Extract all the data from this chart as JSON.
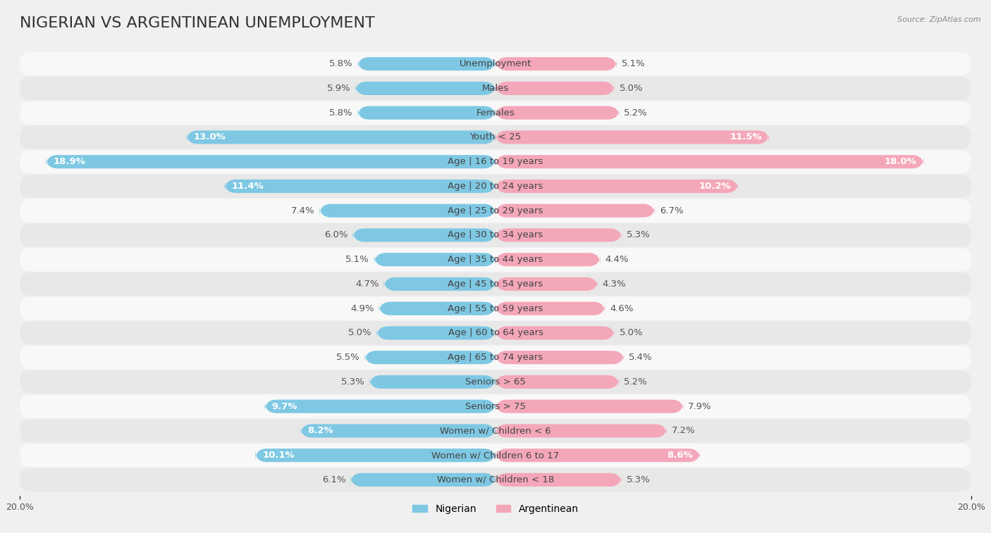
{
  "title": "NIGERIAN VS ARGENTINEAN UNEMPLOYMENT",
  "source": "Source: ZipAtlas.com",
  "categories": [
    "Unemployment",
    "Males",
    "Females",
    "Youth < 25",
    "Age | 16 to 19 years",
    "Age | 20 to 24 years",
    "Age | 25 to 29 years",
    "Age | 30 to 34 years",
    "Age | 35 to 44 years",
    "Age | 45 to 54 years",
    "Age | 55 to 59 years",
    "Age | 60 to 64 years",
    "Age | 65 to 74 years",
    "Seniors > 65",
    "Seniors > 75",
    "Women w/ Children < 6",
    "Women w/ Children 6 to 17",
    "Women w/ Children < 18"
  ],
  "nigerian": [
    5.8,
    5.9,
    5.8,
    13.0,
    18.9,
    11.4,
    7.4,
    6.0,
    5.1,
    4.7,
    4.9,
    5.0,
    5.5,
    5.3,
    9.7,
    8.2,
    10.1,
    6.1
  ],
  "argentinean": [
    5.1,
    5.0,
    5.2,
    11.5,
    18.0,
    10.2,
    6.7,
    5.3,
    4.4,
    4.3,
    4.6,
    5.0,
    5.4,
    5.2,
    7.9,
    7.2,
    8.6,
    5.3
  ],
  "nigerian_color": "#7ec8e3",
  "argentinean_color": "#f4a7b9",
  "axis_max": 20.0,
  "background_color": "#f0f0f0",
  "row_bg_color": "#e8e8e8",
  "row_fg_color": "#f8f8f8",
  "bar_height": 0.55,
  "title_fontsize": 16,
  "label_fontsize": 9.5,
  "tick_fontsize": 9,
  "legend_fontsize": 10,
  "white_text_threshold": 8.0
}
